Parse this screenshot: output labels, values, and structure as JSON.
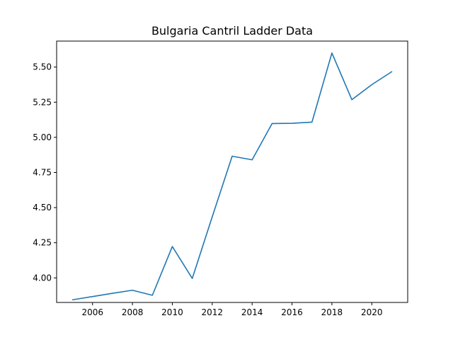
{
  "chart_data": {
    "type": "line",
    "title": "Bulgaria Cantril Ladder Data",
    "xlabel": "",
    "ylabel": "",
    "xlim": [
      2004.2,
      2021.8
    ],
    "ylim": [
      3.825,
      5.685
    ],
    "x": [
      2005,
      2006,
      2007,
      2008,
      2009,
      2010,
      2011,
      2012,
      2013,
      2014,
      2015,
      2016,
      2017,
      2018,
      2019,
      2020,
      2021
    ],
    "series": [
      {
        "color": "#1f77b4",
        "values": [
          3.844,
          3.867,
          3.89,
          3.912,
          3.876,
          4.223,
          3.996,
          4.434,
          4.866,
          4.84,
          5.098,
          5.1,
          5.108,
          5.6,
          5.268,
          5.375,
          5.467
        ]
      }
    ],
    "xticks": [
      2006,
      2008,
      2010,
      2012,
      2014,
      2016,
      2018,
      2020
    ],
    "xtick_labels": [
      "2006",
      "2008",
      "2010",
      "2012",
      "2014",
      "2016",
      "2018",
      "2020"
    ],
    "yticks": [
      4.0,
      4.25,
      4.5,
      4.75,
      5.0,
      5.25,
      5.5
    ],
    "ytick_labels": [
      "4.00",
      "4.25",
      "4.50",
      "4.75",
      "5.00",
      "5.25",
      "5.50"
    ],
    "grid": false,
    "legend": "none"
  }
}
